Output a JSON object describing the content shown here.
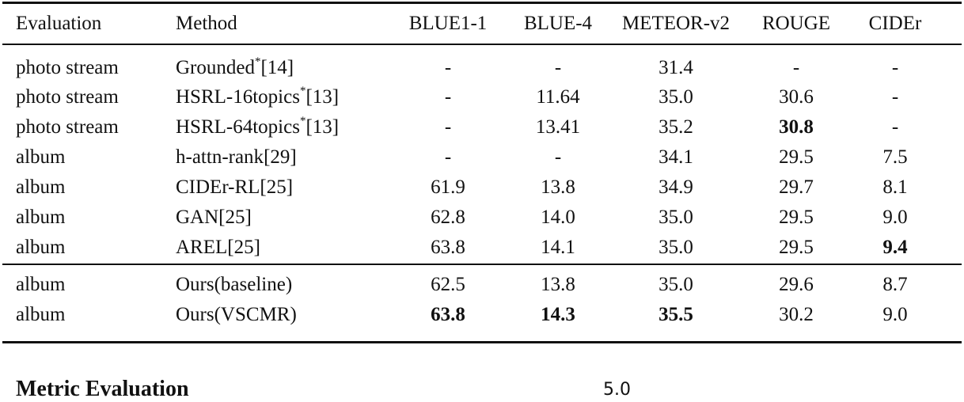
{
  "table": {
    "headers": [
      "Evaluation",
      "Method",
      "BLUE1-1",
      "BLUE-4",
      "METEOR-v2",
      "ROUGE",
      "CIDEr"
    ],
    "rows": [
      {
        "evaluation": "photo stream",
        "method": "Grounded",
        "star": "*",
        "ref": "[14]",
        "values": [
          "-",
          "-",
          "31.4",
          "-",
          "-"
        ],
        "bold": []
      },
      {
        "evaluation": "photo stream",
        "method": "HSRL-16topics",
        "star": "*",
        "ref": "[13]",
        "values": [
          "-",
          "11.64",
          "35.0",
          "30.6",
          "-"
        ],
        "bold": []
      },
      {
        "evaluation": "photo stream",
        "method": "HSRL-64topics",
        "star": "*",
        "ref": "[13]",
        "values": [
          "-",
          "13.41",
          "35.2",
          "30.8",
          "-"
        ],
        "bold": [
          3
        ]
      },
      {
        "evaluation": "album",
        "method": "h-attn-rank",
        "star": "",
        "ref": "[29]",
        "values": [
          "-",
          "-",
          "34.1",
          "29.5",
          "7.5"
        ],
        "bold": []
      },
      {
        "evaluation": "album",
        "method": "CIDEr-RL",
        "star": "",
        "ref": "[25]",
        "values": [
          "61.9",
          "13.8",
          "34.9",
          "29.7",
          "8.1"
        ],
        "bold": []
      },
      {
        "evaluation": "album",
        "method": "GAN",
        "star": "",
        "ref": "[25]",
        "values": [
          "62.8",
          "14.0",
          "35.0",
          "29.5",
          "9.0"
        ],
        "bold": []
      },
      {
        "evaluation": "album",
        "method": "AREL",
        "star": "",
        "ref": "[25]",
        "values": [
          "63.8",
          "14.1",
          "35.0",
          "29.5",
          "9.4"
        ],
        "bold": [
          4
        ]
      },
      {
        "evaluation": "album",
        "method": "Ours(baseline)",
        "star": "",
        "ref": "",
        "values": [
          "62.5",
          "13.8",
          "35.0",
          "29.6",
          "8.7"
        ],
        "bold": []
      },
      {
        "evaluation": "album",
        "method": "Ours(VSCMR)",
        "star": "",
        "ref": "",
        "values": [
          "63.8",
          "14.3",
          "35.5",
          "30.2",
          "9.0"
        ],
        "bold": [
          0,
          1,
          2
        ]
      }
    ]
  },
  "below": {
    "heading": "Metric Evaluation",
    "axis_tick": "5.0"
  }
}
